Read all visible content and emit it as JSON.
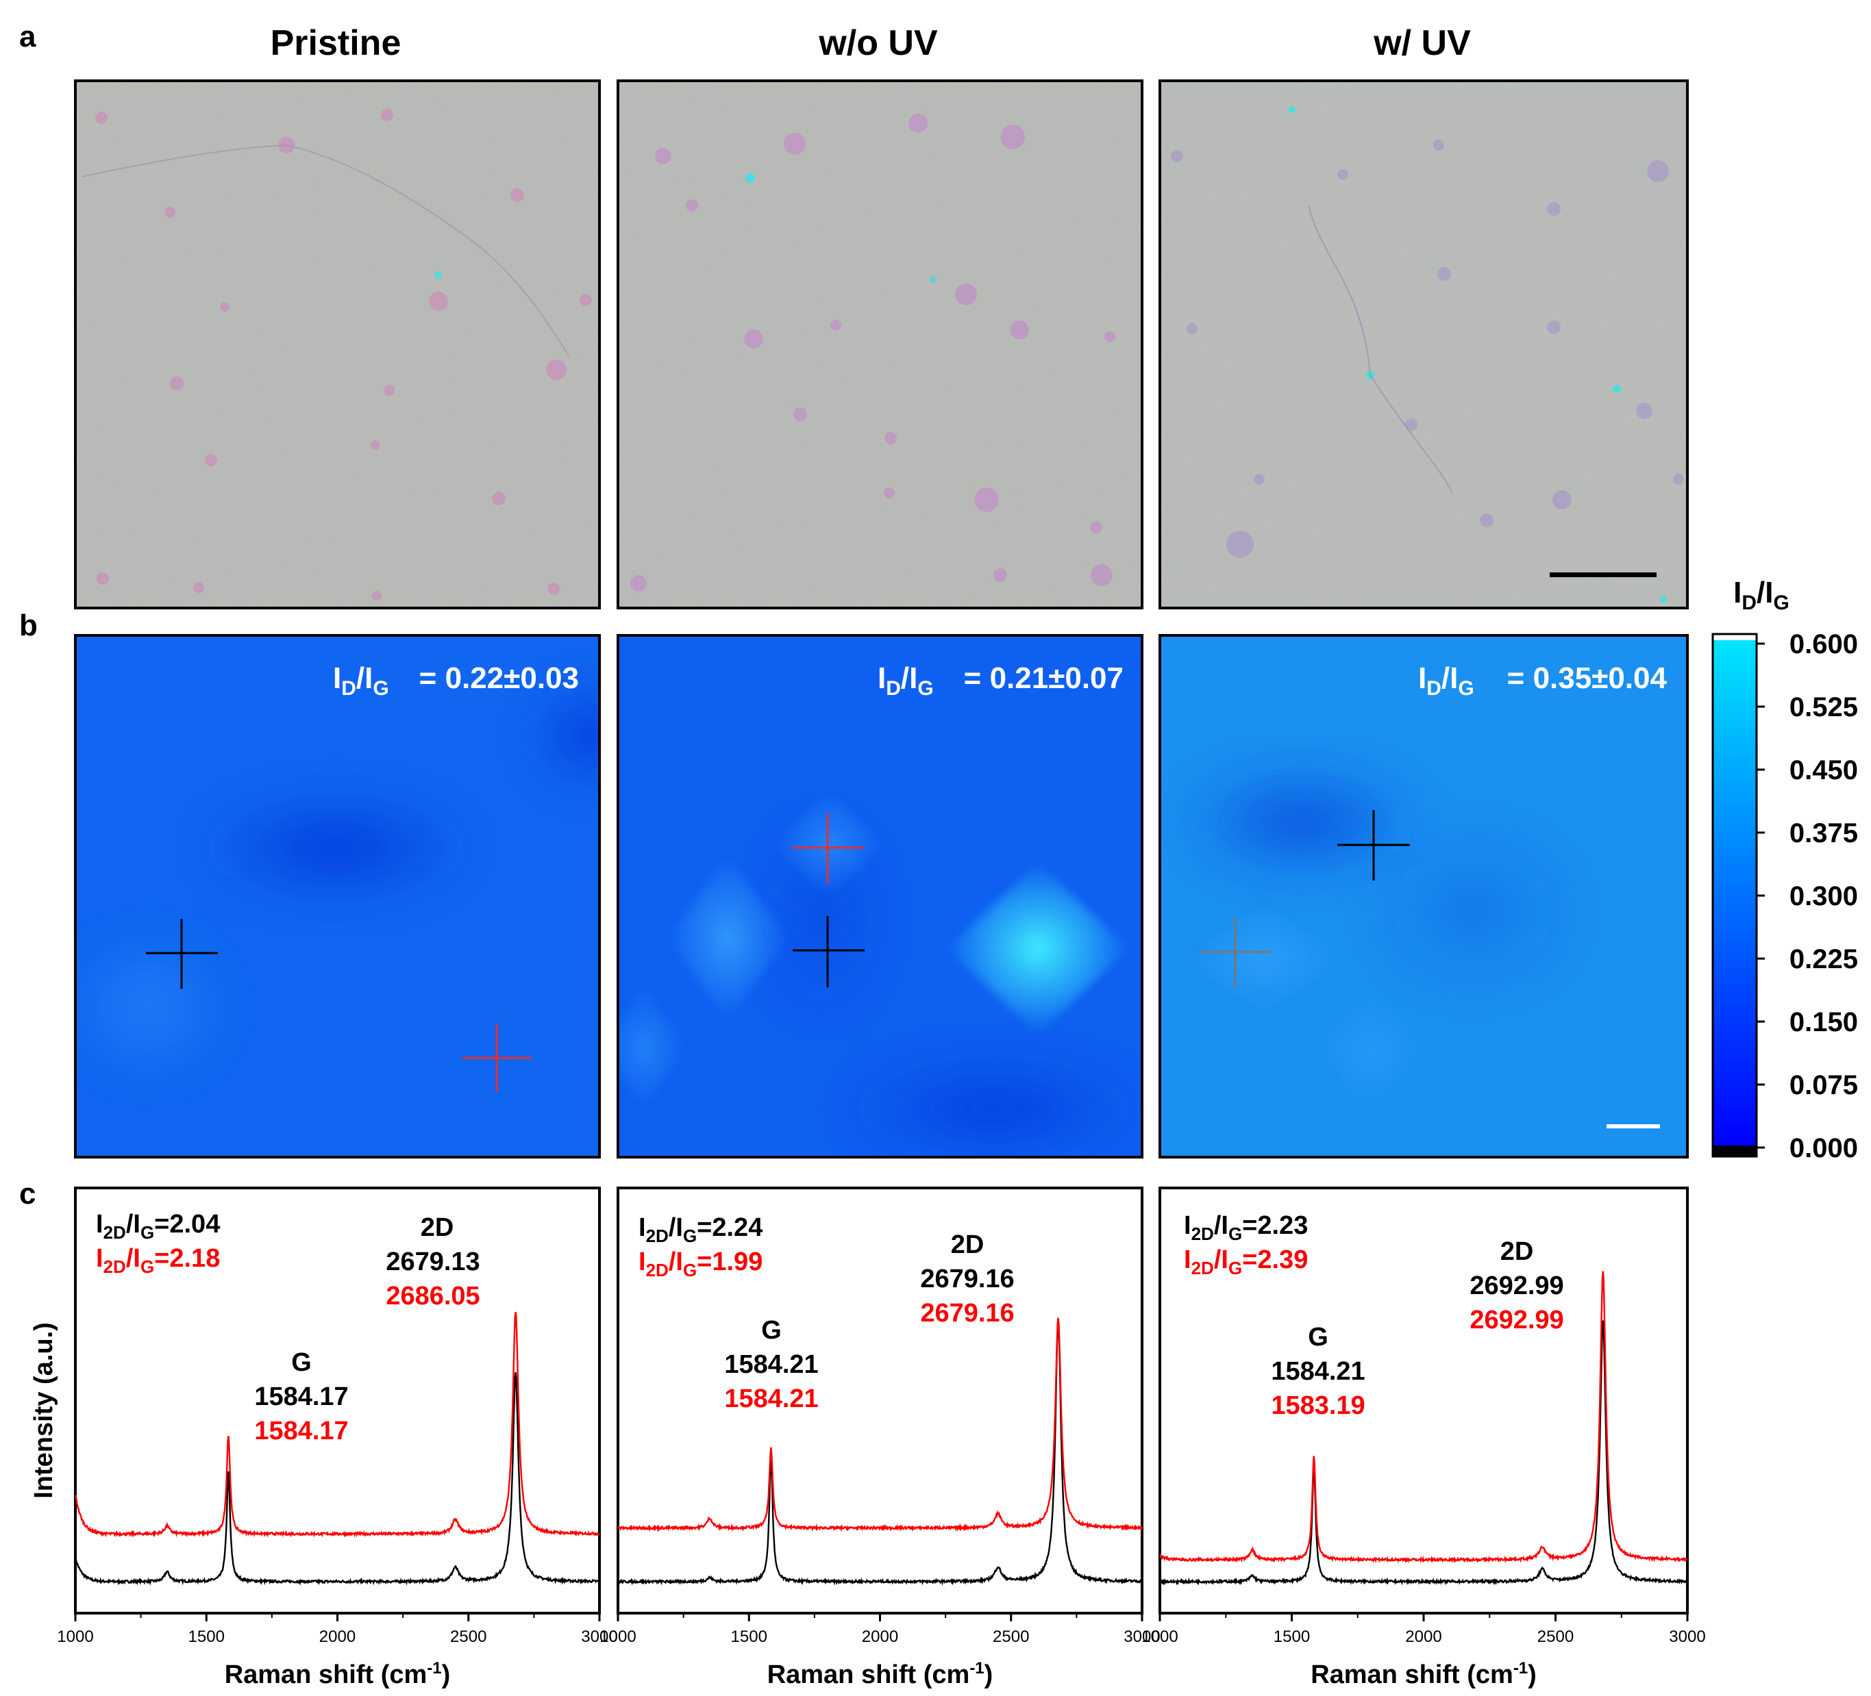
{
  "panel_labels": {
    "a": "a",
    "b": "b",
    "c": "c"
  },
  "samples": [
    {
      "name": "Pristine",
      "map_ratio_label": "ID/IG",
      "map_ratio_value": "= 0.22±0.03",
      "map_level": 0.22,
      "map_std": 0.03,
      "raman": {
        "ratio_black": {
          "label": "I2D/IG",
          "value": "=2.04"
        },
        "ratio_red": {
          "label": "I2D/IG",
          "value": "=2.18"
        },
        "G": {
          "label": "G",
          "black": "1584.17",
          "red": "1584.17"
        },
        "D2": {
          "label": "2D",
          "black": "2679.13",
          "red": "2686.05"
        }
      }
    },
    {
      "name": "w/o UV",
      "map_ratio_label": "ID/IG",
      "map_ratio_value": "= 0.21±0.07",
      "map_level": 0.21,
      "map_std": 0.07,
      "raman": {
        "ratio_black": {
          "label": "I2D/IG",
          "value": "=2.24"
        },
        "ratio_red": {
          "label": "I2D/IG",
          "value": "=1.99"
        },
        "G": {
          "label": "G",
          "black": "1584.21",
          "red": "1584.21"
        },
        "D2": {
          "label": "2D",
          "black": "2679.16",
          "red": "2679.16"
        }
      }
    },
    {
      "name": "w/ UV",
      "map_ratio_label": "ID/IG",
      "map_ratio_value": "= 0.35±0.04",
      "map_level": 0.35,
      "map_std": 0.04,
      "raman": {
        "ratio_black": {
          "label": "I2D/IG",
          "value": "=2.23"
        },
        "ratio_red": {
          "label": "I2D/IG",
          "value": "=2.39"
        },
        "G": {
          "label": "G",
          "black": "1584.21",
          "red": "1583.19"
        },
        "D2": {
          "label": "2D",
          "black": "2692.99",
          "red": "2692.99"
        }
      }
    }
  ],
  "colorbar": {
    "title": "ID/IG",
    "min": 0.0,
    "max": 0.6,
    "ticks": [
      "0.600",
      "0.525",
      "0.450",
      "0.375",
      "0.300",
      "0.225",
      "0.150",
      "0.075",
      "0.000"
    ],
    "colors": [
      "#0000ff",
      "#00e5ff"
    ]
  },
  "colors": {
    "black_spectrum": "#000000",
    "red_spectrum": "#ff0000",
    "optical_bg": "#b8bab6"
  },
  "chart_data": [
    {
      "type": "line",
      "title": "Pristine",
      "xlabel": "Raman shift (cm-1)",
      "ylabel": "Intensity (a.u.)",
      "xlim": [
        1000,
        3000
      ],
      "x_ticks": [
        "1000",
        "1500",
        "2000",
        "2500",
        "3000"
      ],
      "peaks": {
        "D": 1350,
        "G": 1584.17,
        "D'": 2450,
        "2D": 2679.13
      },
      "series": [
        {
          "name": "black",
          "color": "#000000",
          "offset": 0.0,
          "peak_heights": {
            "D": 0.05,
            "G": 0.55,
            "D2p": 0.07,
            "2D": 1.05
          },
          "edge_start": 0.12
        },
        {
          "name": "red",
          "color": "#ff0000",
          "offset": 0.24,
          "peak_heights": {
            "D": 0.04,
            "G": 0.5,
            "D2p": 0.07,
            "2D": 1.12
          },
          "edge_start": 0.2
        }
      ]
    },
    {
      "type": "line",
      "title": "w/o UV",
      "xlabel": "Raman shift (cm-1)",
      "ylabel": "Intensity (a.u.)",
      "xlim": [
        1000,
        3000
      ],
      "x_ticks": [
        "1000",
        "1500",
        "2000",
        "2500",
        "3000"
      ],
      "series": [
        {
          "name": "black",
          "color": "#000000",
          "offset": 0.0,
          "peak_heights": {
            "D": 0.02,
            "G": 0.63,
            "D2p": 0.07,
            "2D": 1.32
          },
          "edge_start": 0.0
        },
        {
          "name": "red",
          "color": "#ff0000",
          "offset": 0.27,
          "peak_heights": {
            "D": 0.05,
            "G": 0.4,
            "D2p": 0.07,
            "2D": 1.06
          },
          "edge_start": 0.0
        }
      ]
    },
    {
      "type": "line",
      "title": "w/ UV",
      "xlabel": "Raman shift (cm-1)",
      "ylabel": "Intensity (a.u.)",
      "xlim": [
        1000,
        3000
      ],
      "x_ticks": [
        "1000",
        "1500",
        "2000",
        "2500",
        "3000"
      ],
      "series": [
        {
          "name": "black",
          "color": "#000000",
          "offset": 0.0,
          "peak_heights": {
            "D": 0.03,
            "G": 0.59,
            "D2p": 0.06,
            "2D": 1.32
          },
          "edge_start": 0.0
        },
        {
          "name": "red",
          "color": "#ff0000",
          "offset": 0.11,
          "peak_heights": {
            "D": 0.05,
            "G": 0.52,
            "D2p": 0.06,
            "2D": 1.45
          },
          "edge_start": 0.02
        }
      ]
    }
  ]
}
